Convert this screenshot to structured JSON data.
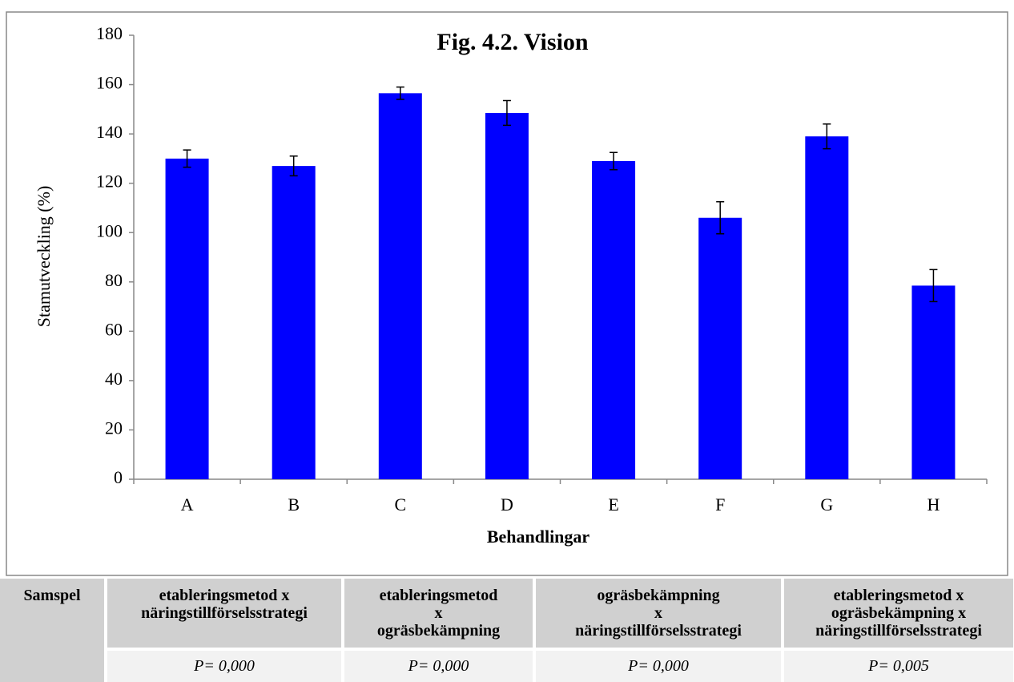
{
  "chart_data": {
    "type": "bar",
    "title": "Fig. 4.2. Vision",
    "x_label": "Behandlingar",
    "y_label": "Stamutveckling (%)",
    "categories": [
      "A",
      "B",
      "C",
      "D",
      "E",
      "F",
      "G",
      "H"
    ],
    "values": [
      130,
      127,
      156.5,
      148.5,
      129,
      106,
      139,
      78.5
    ],
    "errors": [
      3.5,
      4,
      2.5,
      5,
      3.5,
      6.5,
      5,
      6.5
    ],
    "color": "#0000ff",
    "ylim": [
      0,
      180
    ],
    "yticks": [
      0,
      20,
      40,
      60,
      80,
      100,
      120,
      140,
      160,
      180
    ],
    "grid": false
  },
  "table": {
    "header": [
      "Samspel",
      "etableringsmetod x\nnäringstillförselsstrategi",
      "etableringsmetod\nx\nogräsbekämpning",
      "ogräsbekämpning\nx\nnäringstillförselsstrategi",
      "etableringsmetod x\nogräsbekämpning x\nnäringstillförselsstrategi"
    ],
    "rows": [
      [
        "P= 0,000",
        "P= 0,000",
        "P= 0,000",
        "P= 0,005"
      ]
    ]
  }
}
